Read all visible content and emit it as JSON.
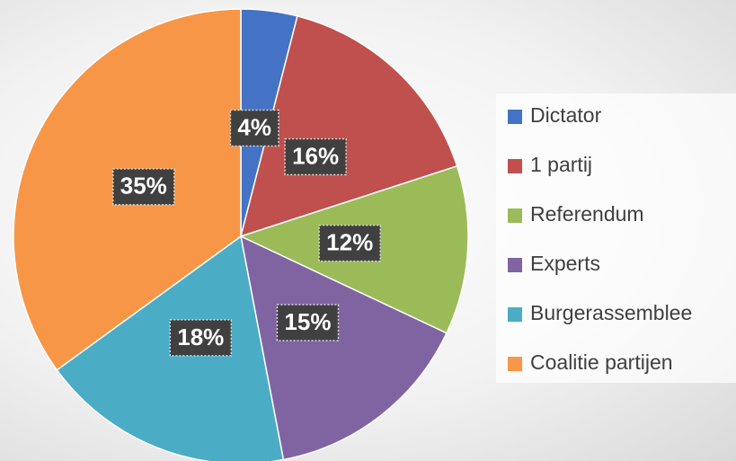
{
  "chart_data": {
    "type": "pie",
    "categories": [
      "Dictator",
      "1 partij",
      "Referendum",
      "Experts",
      "Burgerassemblee",
      "Coalitie partijen"
    ],
    "values": [
      4,
      16,
      12,
      15,
      18,
      35
    ],
    "value_labels": [
      "4%",
      "16%",
      "12%",
      "15%",
      "18%",
      "35%"
    ],
    "colors": [
      "#4472c4",
      "#c0504d",
      "#9bbb59",
      "#8064a2",
      "#4bacc6",
      "#f79646"
    ],
    "legend": "right"
  }
}
